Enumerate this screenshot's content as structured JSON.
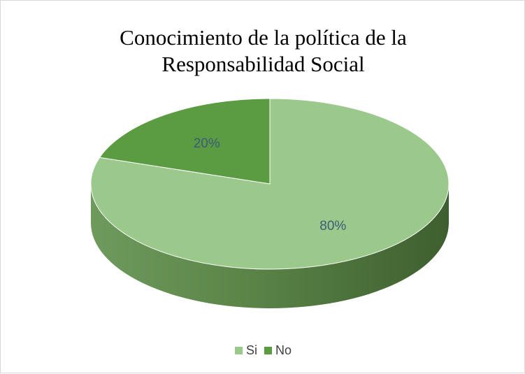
{
  "chart_data": {
    "type": "pie",
    "title_lines": [
      "Conocimiento de la política de la",
      "Responsabilidad Social"
    ],
    "categories": [
      "Si",
      "No"
    ],
    "values": [
      80,
      20
    ],
    "data_labels": [
      "80%",
      "20%"
    ],
    "colors": [
      "#9bc88b",
      "#5b9b41"
    ],
    "legend_position": "bottom",
    "style": "3d"
  }
}
